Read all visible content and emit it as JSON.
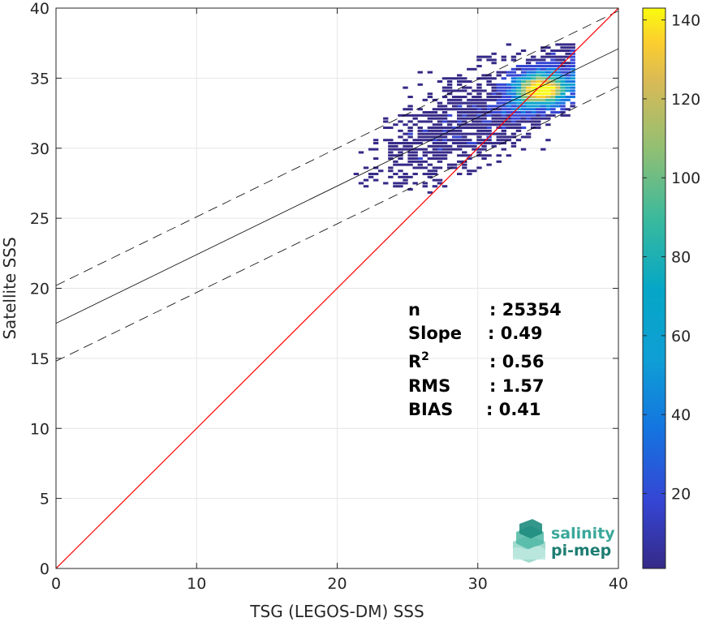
{
  "chart_data": {
    "type": "heatmap",
    "xlabel": "TSG (LEGOS-DM) SSS",
    "ylabel": "Satellite SSS",
    "xlim": [
      0,
      40
    ],
    "ylim": [
      0,
      40
    ],
    "xticks": [
      "0",
      "10",
      "20",
      "30",
      "40"
    ],
    "yticks": [
      "0",
      "5",
      "10",
      "15",
      "20",
      "25",
      "30",
      "35",
      "40"
    ],
    "grid": true,
    "colorbar": {
      "range": [
        1,
        143
      ],
      "ticks": [
        "20",
        "40",
        "60",
        "80",
        "100",
        "120",
        "140"
      ],
      "colormap": "parula"
    },
    "regression_line": {
      "slope": 0.49,
      "intercept": 17.5
    },
    "confidence_offset": 2.7,
    "identity_line": {
      "from": [
        0,
        0
      ],
      "to": [
        40,
        40
      ],
      "color": "#ff0000"
    },
    "density_core": {
      "x_center": 34.5,
      "y_center": 34.2,
      "peak_count": 140
    },
    "stats": [
      {
        "label": "n",
        "value": ": 25354"
      },
      {
        "label": "Slope",
        "value": ": 0.49"
      },
      {
        "label": "R",
        "sup": "2",
        "value": ": 0.56"
      },
      {
        "label": "RMS",
        "value": ": 1.57"
      },
      {
        "label": "BIAS",
        "value": ": 0.41"
      }
    ]
  },
  "logo": {
    "line1": "salinity",
    "line2": "pi-mep",
    "color1": "#3aa89a",
    "color2": "#1e7d72"
  }
}
